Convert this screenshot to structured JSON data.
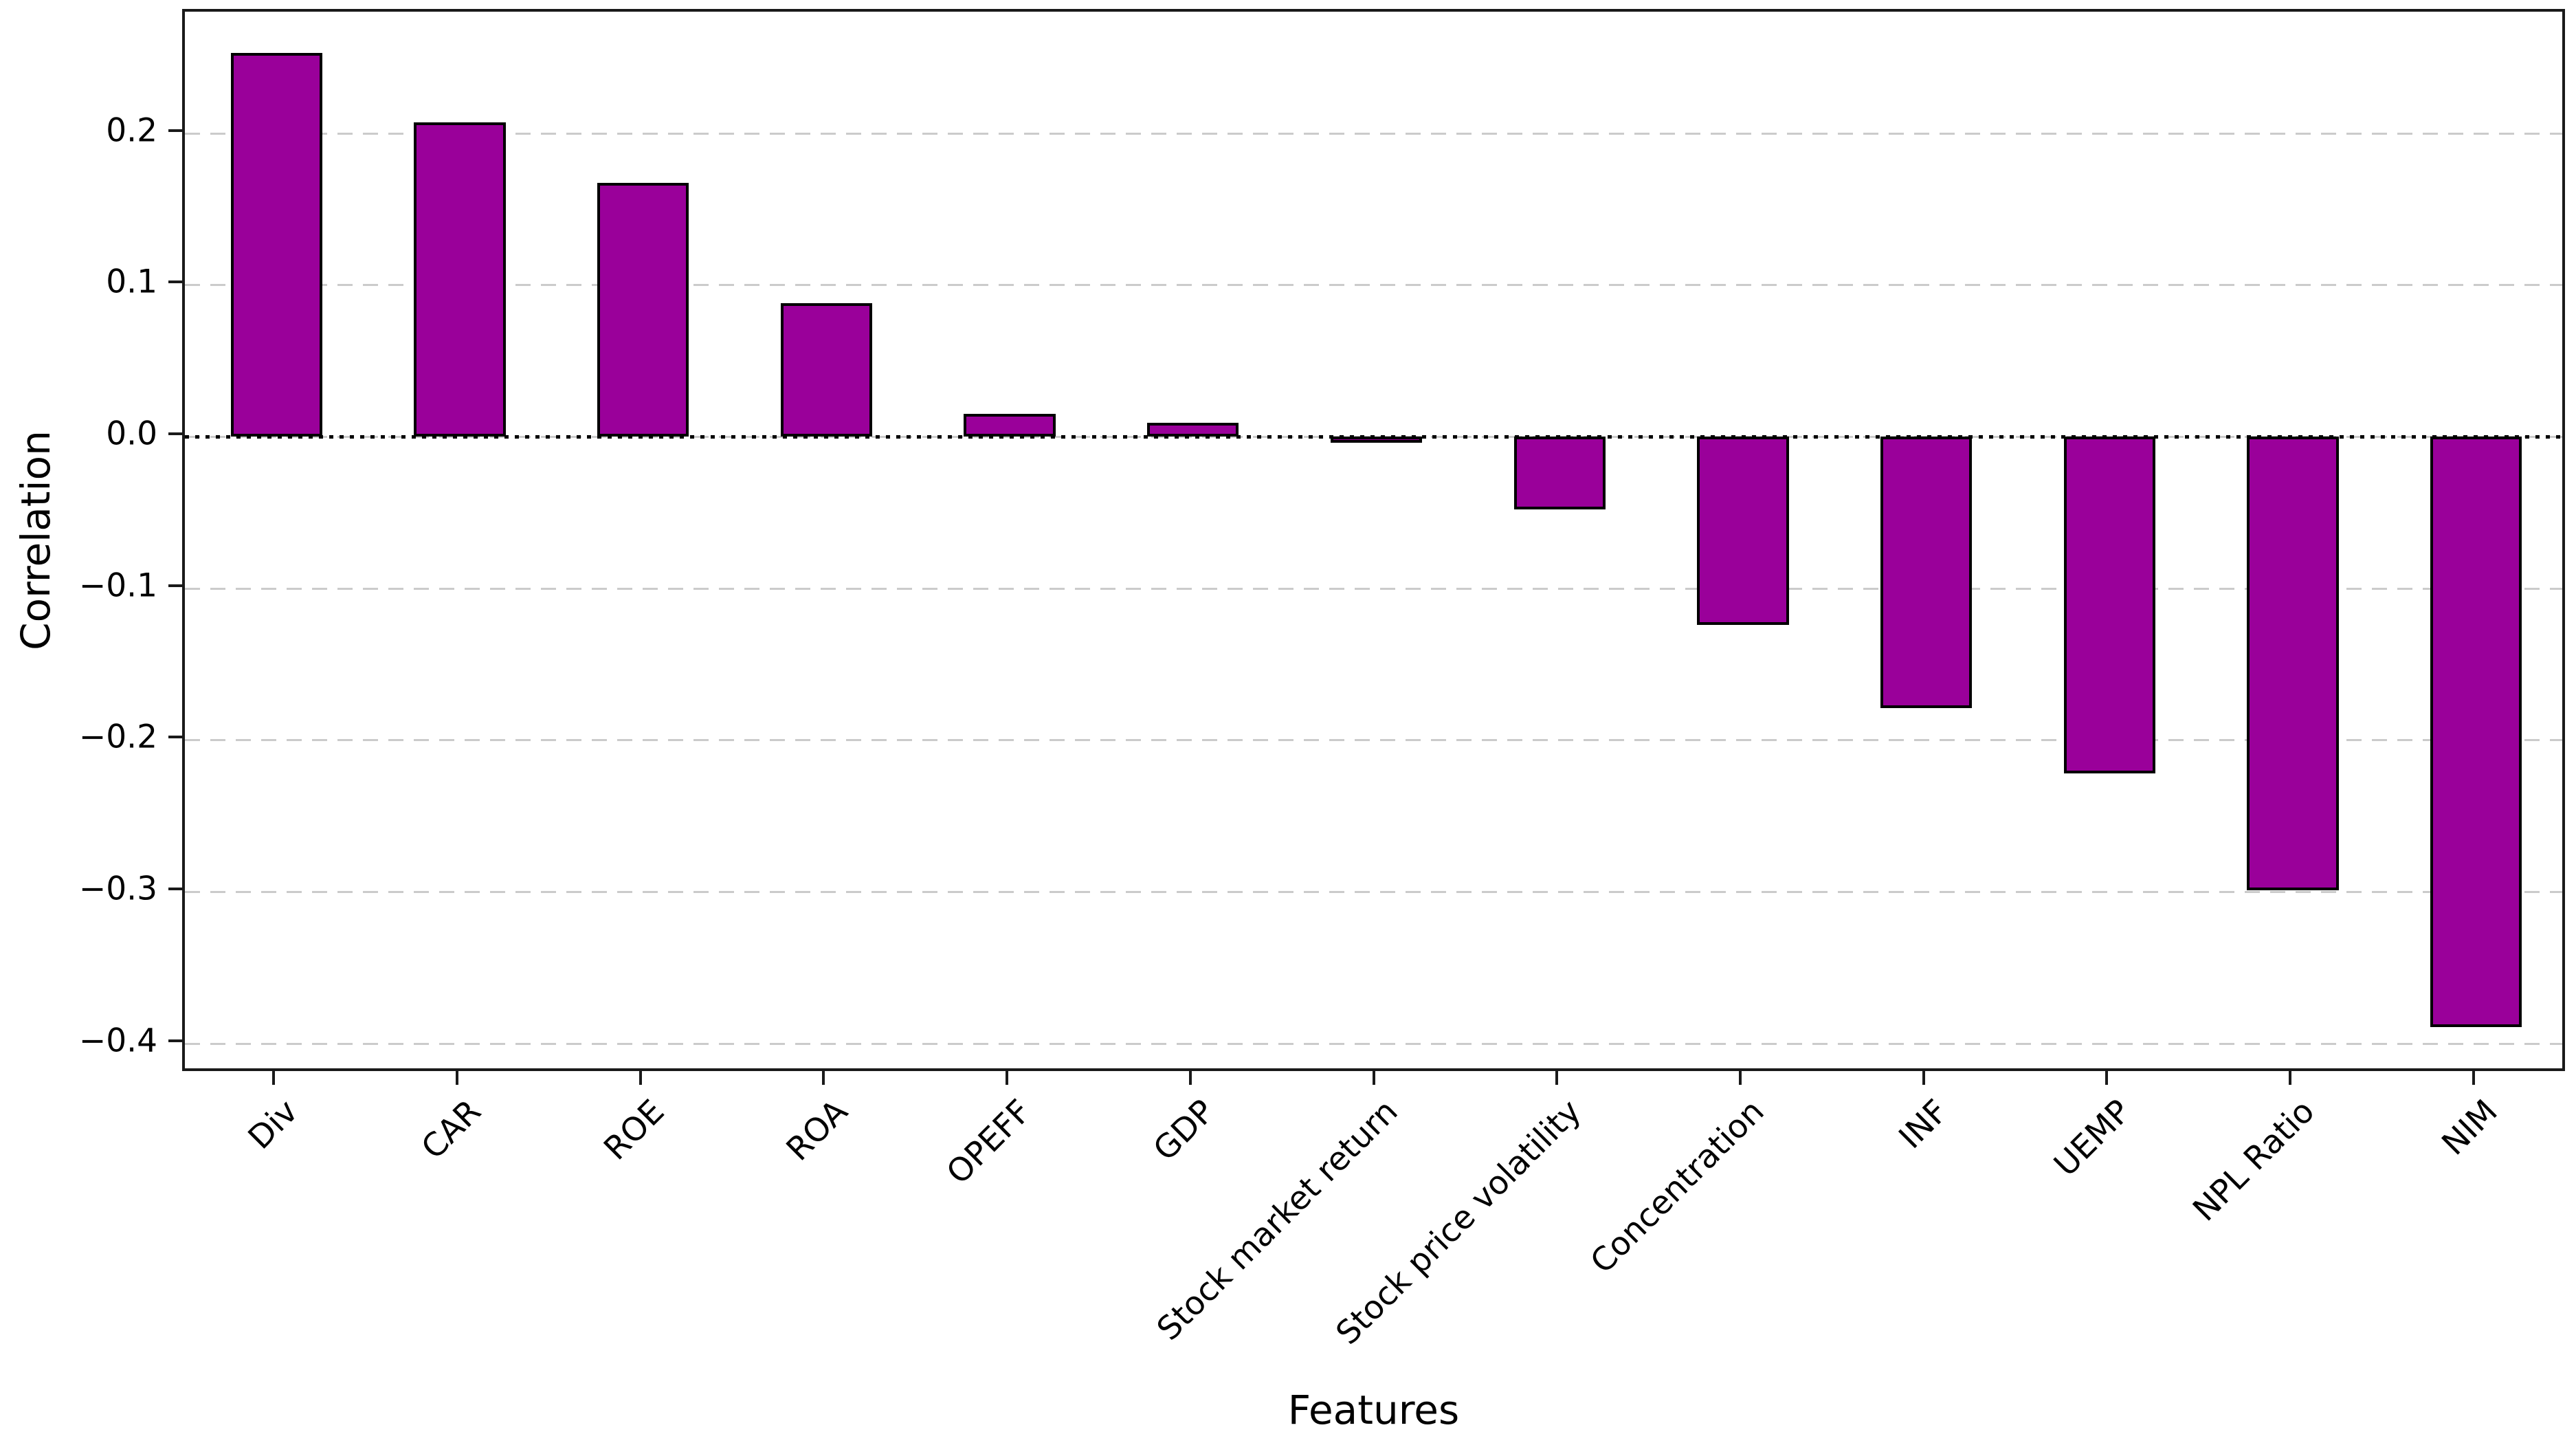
{
  "chart_data": {
    "type": "bar",
    "title": "",
    "xlabel": "Features",
    "ylabel": "Correlation",
    "categories": [
      "Div",
      "CAR",
      "ROE",
      "ROA",
      "OPEFF",
      "GDP",
      "Stock market return",
      "Stock price volatility",
      "Concentration",
      "INF",
      "UEMP",
      "NPL Ratio",
      "NIM"
    ],
    "values": [
      0.253,
      0.207,
      0.167,
      0.088,
      0.015,
      0.009,
      -0.004,
      -0.048,
      -0.124,
      -0.179,
      -0.222,
      -0.299,
      -0.389
    ],
    "ylim": [
      -0.42,
      0.28
    ],
    "yticks": [
      0.2,
      0.1,
      0.0,
      -0.1,
      -0.2,
      -0.3,
      -0.4
    ],
    "ytick_labels": [
      "0.2",
      "0.1",
      "0.0",
      "−0.1",
      "−0.2",
      "−0.3",
      "−0.4"
    ],
    "grid": "dashed horizontal gridlines",
    "grid_color": "#cbcbcb",
    "zero_line": "dotted black line at y=0",
    "bar_color": "#9A009A",
    "bar_edge_color": "#000000",
    "bar_width_fraction": 0.5,
    "legend": "none",
    "x_tick_rotation_deg": 45
  }
}
